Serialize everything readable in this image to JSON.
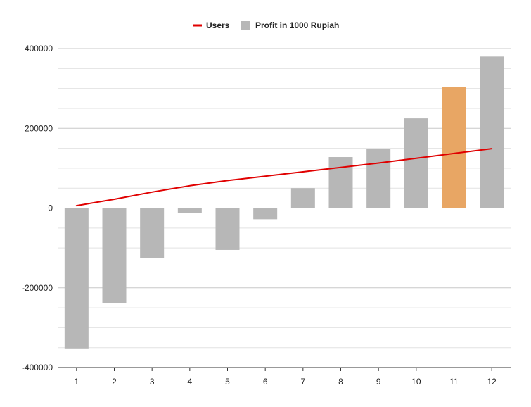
{
  "chart_data": {
    "type": "bar",
    "categories": [
      "1",
      "2",
      "3",
      "4",
      "5",
      "6",
      "7",
      "8",
      "9",
      "10",
      "11",
      "12"
    ],
    "series": [
      {
        "name": "Profit in 1000 Rupiah",
        "kind": "bar",
        "color": "#b7b7b7",
        "values": [
          -352000,
          -238000,
          -125000,
          -12000,
          -105000,
          -28000,
          50000,
          128000,
          148000,
          225000,
          303000,
          380000
        ],
        "highlight": {
          "index": 10,
          "color": "#e8a664"
        }
      },
      {
        "name": "Users",
        "kind": "line",
        "color": "#e00000",
        "values": [
          6000,
          22000,
          40000,
          56000,
          69000,
          80000,
          91000,
          102000,
          113000,
          125000,
          137000,
          149000
        ]
      }
    ],
    "yticks": [
      -400000,
      -200000,
      0,
      200000,
      400000
    ],
    "ylim": [
      -400000,
      400000
    ],
    "grid": true,
    "legend_position": "top"
  }
}
